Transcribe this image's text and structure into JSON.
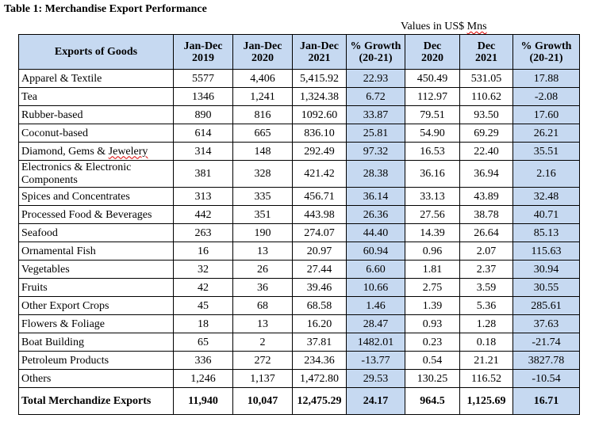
{
  "title": "Table 1: Merchandise Export Performance",
  "values_note_prefix": "Values in US$ ",
  "values_note_unit": "Mns",
  "headers": {
    "goods": "Exports of Goods",
    "col1": [
      "Jan-Dec",
      "2019"
    ],
    "col2": [
      "Jan-Dec",
      "2020"
    ],
    "col3": [
      "Jan-Dec",
      "2021"
    ],
    "col4": [
      "% Growth",
      "(20-21)"
    ],
    "col5": [
      "Dec",
      "2020"
    ],
    "col6": [
      "Dec",
      "2021"
    ],
    "col7": [
      "% Growth",
      "(20-21)"
    ]
  },
  "rows": [
    {
      "name": "Apparel & Textile",
      "v": [
        "5577",
        "4,406",
        "5,415.92",
        "22.93",
        "450.49",
        "531.05",
        "17.88"
      ]
    },
    {
      "name": "Tea",
      "v": [
        "1346",
        "1,241",
        "1,324.38",
        "6.72",
        "112.97",
        "110.62",
        "-2.08"
      ]
    },
    {
      "name": "Rubber-based",
      "v": [
        "890",
        "816",
        "1092.60",
        "33.87",
        "79.51",
        "93.50",
        "17.60"
      ]
    },
    {
      "name": "Coconut-based",
      "v": [
        "614",
        "665",
        "836.10",
        "25.81",
        "54.90",
        "69.29",
        "26.21"
      ]
    },
    {
      "name_a": "Diamond, Gems & ",
      "name_b": "Jewelery",
      "v": [
        "314",
        "148",
        "292.49",
        "97.32",
        "16.53",
        "22.40",
        "35.51"
      ]
    },
    {
      "name_line1": "Electronics & Electronic",
      "name_line2": "Components",
      "v": [
        "381",
        "328",
        "421.42",
        "28.38",
        "36.16",
        "36.94",
        "2.16"
      ]
    },
    {
      "name": "Spices and Concentrates",
      "v": [
        "313",
        "335",
        "456.71",
        "36.14",
        "33.13",
        "43.89",
        "32.48"
      ]
    },
    {
      "name": "Processed Food & Beverages",
      "v": [
        "442",
        "351",
        "443.98",
        "26.36",
        "27.56",
        "38.78",
        "40.71"
      ]
    },
    {
      "name": "Seafood",
      "v": [
        "263",
        "190",
        "274.07",
        "44.40",
        "14.39",
        "26.64",
        "85.13"
      ]
    },
    {
      "name": "Ornamental Fish",
      "v": [
        "16",
        "13",
        "20.97",
        "60.94",
        "0.96",
        "2.07",
        "115.63"
      ]
    },
    {
      "name": "Vegetables",
      "v": [
        "32",
        "26",
        "27.44",
        "6.60",
        "1.81",
        "2.37",
        "30.94"
      ]
    },
    {
      "name": "Fruits",
      "v": [
        "42",
        "36",
        "39.46",
        "10.66",
        "2.75",
        "3.59",
        "30.55"
      ]
    },
    {
      "name": "Other Export Crops",
      "v": [
        "45",
        "68",
        "68.58",
        "1.46",
        "1.39",
        "5.36",
        "285.61"
      ]
    },
    {
      "name": "Flowers & Foliage",
      "v": [
        "18",
        "13",
        "16.20",
        "28.47",
        "0.93",
        "1.28",
        "37.63"
      ]
    },
    {
      "name": "Boat Building",
      "v": [
        "65",
        "2",
        "37.81",
        "1482.01",
        "0.23",
        "0.18",
        "-21.74"
      ]
    },
    {
      "name": "Petroleum Products",
      "v": [
        "336",
        "272",
        "234.36",
        "-13.77",
        "0.54",
        "21.21",
        "3827.78"
      ]
    },
    {
      "name": "Others",
      "v": [
        "1,246",
        "1,137",
        "1,472.80",
        "29.53",
        "130.25",
        "116.52",
        "-10.54"
      ]
    }
  ],
  "total": {
    "name": "Total Merchandize Exports",
    "v": [
      "11,940",
      "10,047",
      "12,475.29",
      "24.17",
      "964.5",
      "1,125.69",
      "16.71"
    ]
  }
}
